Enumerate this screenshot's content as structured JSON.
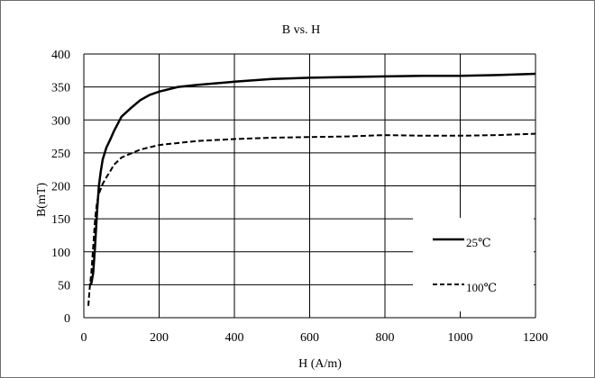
{
  "chart_data": {
    "type": "line",
    "title": "B vs. H",
    "xlabel": "H (A/m)",
    "ylabel": "B(mT)",
    "xlim": [
      0,
      1200
    ],
    "ylim": [
      0,
      400
    ],
    "xticks": [
      0,
      200,
      400,
      600,
      800,
      1000,
      1200
    ],
    "yticks": [
      0,
      50,
      100,
      150,
      200,
      250,
      300,
      350,
      400
    ],
    "grid": true,
    "legend_position": "lower-right",
    "series": [
      {
        "name": "25℃",
        "style": "solid",
        "color": "#000000",
        "x": [
          15,
          20,
          25,
          30,
          35,
          40,
          45,
          50,
          60,
          70,
          80,
          100,
          125,
          150,
          175,
          200,
          250,
          300,
          400,
          500,
          600,
          700,
          800,
          900,
          1000,
          1100,
          1200
        ],
        "y": [
          50,
          52,
          68,
          110,
          160,
          200,
          222,
          240,
          258,
          270,
          283,
          305,
          318,
          330,
          338,
          343,
          350,
          353,
          358,
          362,
          364,
          365,
          366,
          367,
          367,
          368,
          370
        ]
      },
      {
        "name": "100℃",
        "style": "dashed",
        "color": "#000000",
        "x": [
          12,
          15,
          20,
          25,
          30,
          35,
          40,
          50,
          60,
          70,
          80,
          100,
          125,
          150,
          200,
          300,
          400,
          500,
          600,
          700,
          800,
          900,
          1000,
          1100,
          1200
        ],
        "y": [
          18,
          42,
          68,
          108,
          150,
          175,
          188,
          203,
          213,
          222,
          232,
          243,
          249,
          255,
          262,
          268,
          271,
          273,
          274,
          275,
          277,
          276,
          276,
          277,
          279
        ]
      }
    ]
  }
}
